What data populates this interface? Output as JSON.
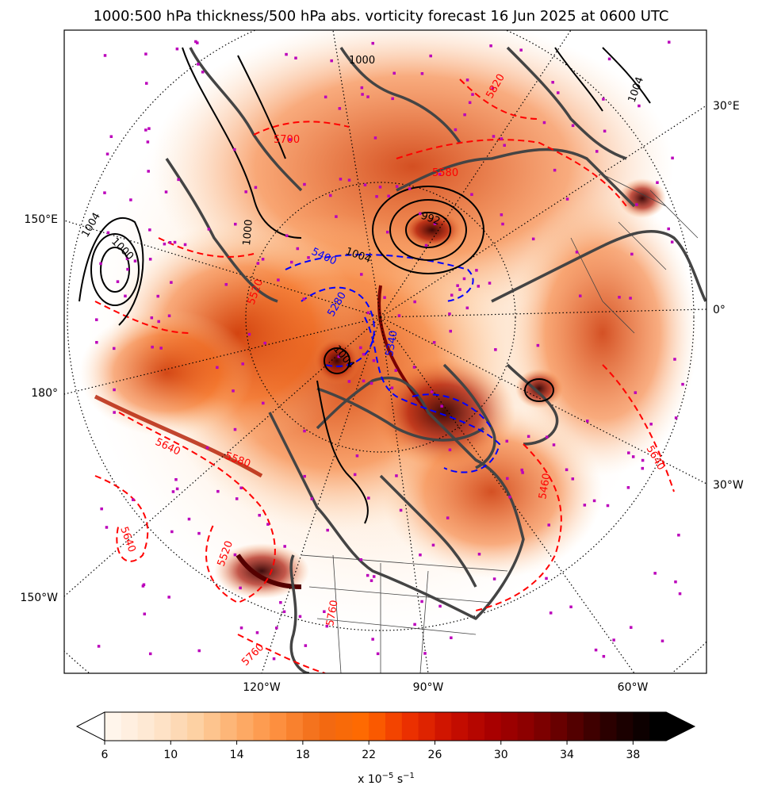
{
  "title": "1000:500 hPa thickness/500 hPa abs. vorticity forecast 16 Jun 2025 at 0600 UTC",
  "map": {
    "left_labels": [
      "150°E",
      "180°",
      "150°W"
    ],
    "right_labels": [
      "30°E",
      "0°",
      "30°W"
    ],
    "bottom_labels": [
      "120°W",
      "90°W",
      "60°W"
    ],
    "thickness_labels_red": [
      "5640",
      "5580",
      "5640",
      "5520",
      "5760",
      "5460",
      "5640",
      "5580",
      "5700",
      "5820",
      "5520",
      "5760"
    ],
    "thickness_labels_blue": [
      "5400",
      "5280",
      "5340"
    ],
    "pressure_labels": [
      "1004",
      "1000",
      "992",
      "1000",
      "1004",
      "1004",
      "1004",
      "1000"
    ],
    "colors": {
      "thickness_warm": "#ff0000",
      "thickness_cold": "#0000ff",
      "pressure": "#000000",
      "coastline": "#444444",
      "markers": "#bb00bb"
    }
  },
  "colorbar": {
    "ticks": [
      "6",
      "10",
      "14",
      "18",
      "22",
      "26",
      "30",
      "34",
      "38"
    ],
    "label_base": "x 10",
    "label_exp": "−5",
    "label_unit": " s",
    "label_unit_exp": "−1",
    "min": 6,
    "max": 40,
    "step": 1,
    "colormap": [
      "#fff5eb",
      "#fee6ce",
      "#fdd0a2",
      "#fdae6b",
      "#fd8d3c",
      "#f16913",
      "#ff6a00",
      "#ee3300",
      "#cc1100",
      "#aa0000",
      "#880000",
      "#550000",
      "#220000",
      "#000000"
    ]
  }
}
